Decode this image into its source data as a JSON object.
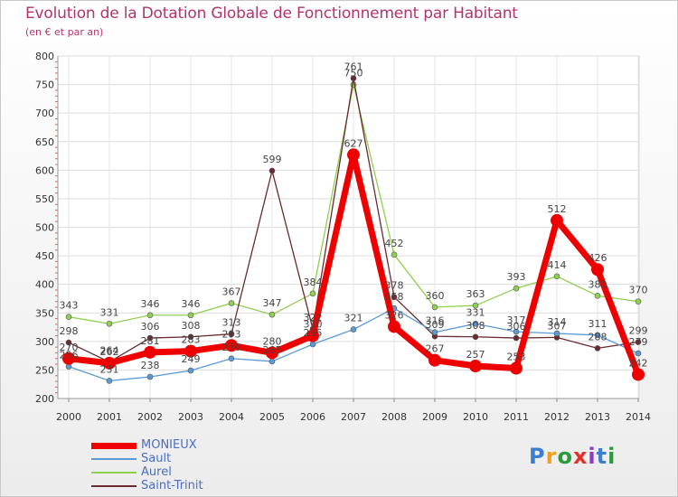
{
  "header": {
    "title": "Evolution de la Dotation Globale de Fonctionnement par Habitant",
    "subtitle": "(en € et par an)"
  },
  "logo": {
    "text": "Proxiti",
    "colors": [
      "#3b7fd1",
      "#f0a020",
      "#2a9a3a",
      "#e0312d",
      "#8a3fc0",
      "#3b7fd1",
      "#2a9a3a"
    ]
  },
  "chart_data": {
    "type": "line",
    "categories": [
      "2000",
      "2001",
      "2002",
      "2003",
      "2004",
      "2005",
      "2006",
      "2007",
      "2008",
      "2009",
      "2010",
      "2011",
      "2012",
      "2013",
      "2014"
    ],
    "ylim": [
      200,
      800
    ],
    "yticks": [
      200,
      250,
      300,
      350,
      400,
      450,
      500,
      550,
      600,
      650,
      700,
      750,
      800
    ],
    "grid": true,
    "legend_position": "bottom-left",
    "series": [
      {
        "name": "MONIEUX",
        "color": "#ee0000",
        "values": [
          270,
          262,
          281,
          283,
          293,
          280,
          310,
          627,
          326,
          267,
          257,
          253,
          512,
          426,
          242
        ],
        "labels": [
          "270",
          "262",
          "281",
          "283",
          "293",
          "280",
          "310",
          "627",
          "326",
          "267",
          "257",
          "253",
          "512",
          "426",
          "242"
        ]
      },
      {
        "name": "Sault",
        "color": "#5b9bd5",
        "values": [
          256,
          231,
          238,
          249,
          270,
          265,
          295,
          321,
          358,
          316,
          331,
          317,
          314,
          311,
          279
        ],
        "labels": [
          "256",
          "231",
          "238",
          "249",
          "270",
          "265",
          "295",
          "321",
          "358",
          "316",
          "331",
          "317",
          "314",
          "311",
          "279"
        ]
      },
      {
        "name": "Aurel",
        "color": "#90d050",
        "values": [
          343,
          331,
          346,
          346,
          367,
          347,
          384,
          750,
          452,
          360,
          363,
          393,
          414,
          380,
          370
        ],
        "labels": [
          "343",
          "331",
          "346",
          "346",
          "367",
          "347",
          "384",
          "750",
          "452",
          "360",
          "363",
          "393",
          "414",
          "380",
          "370"
        ]
      },
      {
        "name": "Saint-Trinit",
        "color": "#6a2a30",
        "values": [
          298,
          264,
          306,
          308,
          313,
          599,
          322,
          761,
          378,
          309,
          308,
          306,
          307,
          288,
          299
        ],
        "labels": [
          "298",
          "264",
          "306",
          "308",
          "313",
          "599",
          "322",
          "761",
          "378",
          "309",
          "308",
          "306",
          "307",
          "288",
          "299"
        ]
      }
    ]
  }
}
